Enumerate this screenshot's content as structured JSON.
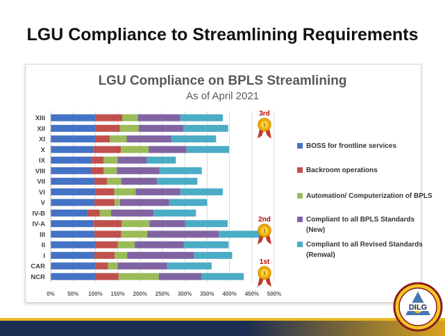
{
  "slide": {
    "title": "LGU Compliance to Streamlining Requirements",
    "logo_text": "DILG"
  },
  "chart_data": {
    "type": "bar",
    "orientation": "horizontal",
    "stacked": true,
    "title": "LGU Compliance on BPLS Streamlining",
    "subtitle": "As of April 2021",
    "xlabel": "",
    "ylabel": "",
    "xlim": [
      0,
      500
    ],
    "x_ticks": [
      "0%",
      "50%",
      "100%",
      "150%",
      "200%",
      "250%",
      "300%",
      "350%",
      "400%",
      "450%",
      "500%"
    ],
    "grid": true,
    "legend_position": "right",
    "categories": [
      "XIII",
      "XII",
      "XI",
      "X",
      "IX",
      "VIII",
      "VII",
      "VI",
      "V",
      "IV-B",
      "IV-A",
      "III",
      "II",
      "I",
      "CAR",
      "NCR"
    ],
    "series": [
      {
        "name": "BOSS for frontline services",
        "color": "#4472c4",
        "values": [
          100,
          100,
          100,
          95,
          90,
          90,
          98,
          100,
          98,
          82,
          95,
          98,
          100,
          98,
          100,
          100
        ]
      },
      {
        "name": "Backroom operations",
        "color": "#c0504d",
        "values": [
          60,
          55,
          32,
          62,
          28,
          28,
          28,
          42,
          45,
          28,
          64,
          60,
          50,
          45,
          28,
          52
        ]
      },
      {
        "name": "Automation/ Computerization of BPLS",
        "color": "#9bbb59",
        "values": [
          35,
          42,
          38,
          62,
          32,
          30,
          32,
          48,
          12,
          25,
          62,
          58,
          38,
          28,
          22,
          90
        ]
      },
      {
        "name": "Compliant to all BPLS Standards (New)",
        "color": "#8064a2",
        "values": [
          95,
          100,
          100,
          85,
          65,
          95,
          80,
          100,
          110,
          95,
          80,
          160,
          110,
          150,
          110,
          95
        ]
      },
      {
        "name": "Compliant to all Revised Standards (Renwal)",
        "color": "#4bacc6",
        "values": [
          95,
          100,
          100,
          95,
          65,
          95,
          90,
          95,
          85,
          95,
          95,
          100,
          100,
          85,
          100,
          95
        ]
      }
    ],
    "annotations": [
      {
        "text": "3rd",
        "category": "XIII"
      },
      {
        "text": "2nd",
        "category": "IV-A"
      },
      {
        "text": "1st",
        "category": "CAR"
      }
    ]
  }
}
